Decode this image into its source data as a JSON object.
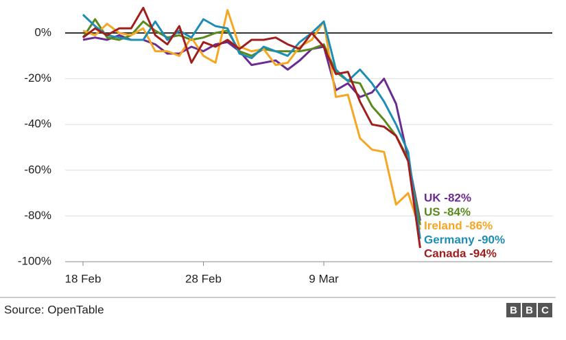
{
  "chart_data": {
    "type": "line",
    "categories": [
      "18 Feb",
      null,
      null,
      null,
      null,
      null,
      null,
      null,
      null,
      null,
      "28 Feb",
      null,
      null,
      null,
      null,
      null,
      null,
      null,
      null,
      null,
      "9 Mar",
      null,
      null,
      null,
      null,
      null,
      null,
      null,
      null
    ],
    "series": [
      {
        "name": "UK",
        "end_label": "UK -82%",
        "color": "#6a2c91",
        "values": [
          -3,
          -2,
          -3,
          -1,
          -3,
          -3,
          -5,
          -9,
          -9,
          -6,
          -8,
          -5,
          -4,
          -8,
          -14,
          -13,
          -12,
          -16,
          -12,
          -7,
          -6,
          -25,
          -22,
          -28,
          -26,
          -20,
          -31,
          -55,
          -82
        ]
      },
      {
        "name": "US",
        "end_label": "US -84%",
        "color": "#5a8a1e",
        "values": [
          -2,
          6,
          -2,
          -3,
          -1,
          5,
          1,
          -2,
          -1,
          -3,
          -2,
          0,
          1,
          -8,
          -10,
          -7,
          -8,
          -8,
          -8,
          -7,
          -5,
          -17,
          -21,
          -22,
          -32,
          -38,
          -45,
          -55,
          -84
        ]
      },
      {
        "name": "Ireland",
        "end_label": "Ireland -86%",
        "color": "#f5a623",
        "values": [
          1,
          -1,
          4,
          0,
          -1,
          2,
          -8,
          -8,
          -10,
          -2,
          -10,
          -13,
          10,
          -6,
          -8,
          -7,
          -14,
          -13,
          -6,
          -3,
          5,
          -28,
          -27,
          -46,
          -51,
          -52,
          -75,
          -70,
          -86
        ]
      },
      {
        "name": "Germany",
        "end_label": "Germany -90%",
        "color": "#1d8db5",
        "values": [
          8,
          3,
          -1,
          -2,
          -3,
          -3,
          5,
          -3,
          1,
          -2,
          6,
          3,
          2,
          -9,
          -11,
          -6,
          -8,
          -10,
          -4,
          0,
          5,
          -16,
          -21,
          -16,
          -22,
          -30,
          -40,
          -52,
          -90
        ]
      },
      {
        "name": "Canada",
        "end_label": "Canada -94%",
        "color": "#a01e1e",
        "values": [
          -2,
          2,
          -1,
          2,
          2,
          11,
          -1,
          -5,
          3,
          -13,
          -4,
          -6,
          -3,
          -7,
          -3,
          -3,
          -2,
          -5,
          -7,
          0,
          -6,
          -18,
          -17,
          -30,
          -40,
          -41,
          -45,
          -56,
          -94
        ]
      }
    ],
    "ylim": [
      -100,
      10
    ],
    "yticks": [
      {
        "value": 0,
        "label": "0%"
      },
      {
        "value": -20,
        "label": "-20%"
      },
      {
        "value": -40,
        "label": "-40%"
      },
      {
        "value": -60,
        "label": "-60%"
      },
      {
        "value": -80,
        "label": "-80%"
      },
      {
        "value": -100,
        "label": "-100%"
      }
    ],
    "grid": true,
    "source": "Source: OpenTable",
    "logo": [
      "B",
      "B",
      "C"
    ]
  }
}
